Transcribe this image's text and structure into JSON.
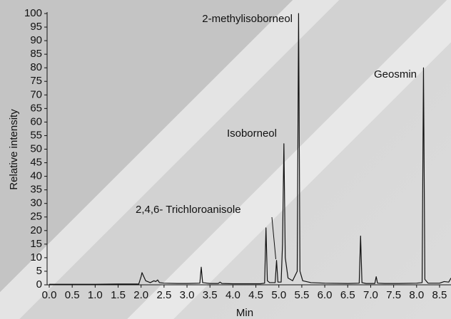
{
  "chart_data": {
    "type": "line",
    "x": [
      0.0,
      0.5,
      1.0,
      1.5,
      1.95,
      2.0,
      2.02,
      2.06,
      2.1,
      2.2,
      2.28,
      2.32,
      2.36,
      2.4,
      2.5,
      2.8,
      3.0,
      3.28,
      3.31,
      3.34,
      3.5,
      3.68,
      3.72,
      3.76,
      4.0,
      4.3,
      4.6,
      4.69,
      4.72,
      4.75,
      4.8,
      4.92,
      4.95,
      4.98,
      5.05,
      5.08,
      5.11,
      5.14,
      5.2,
      5.3,
      5.4,
      5.43,
      5.46,
      5.52,
      5.7,
      6.0,
      6.5,
      6.75,
      6.78,
      6.81,
      6.9,
      7.09,
      7.12,
      7.15,
      7.3,
      7.6,
      8.0,
      8.12,
      8.15,
      8.18,
      8.25,
      8.5,
      8.6,
      8.7,
      8.75
    ],
    "values": [
      0.2,
      0.2,
      0.2,
      0.3,
      0.3,
      3.0,
      4.5,
      3.0,
      1.5,
      0.8,
      1.5,
      1.2,
      1.8,
      0.8,
      0.6,
      0.5,
      0.5,
      0.6,
      6.5,
      0.8,
      0.5,
      0.5,
      1.0,
      0.5,
      0.4,
      0.4,
      0.4,
      0.6,
      21,
      1.5,
      0.8,
      0.8,
      9,
      1.0,
      1.0,
      15,
      52,
      10,
      2.5,
      1.5,
      5,
      100,
      5,
      1.5,
      0.8,
      0.6,
      0.5,
      0.6,
      18,
      0.8,
      0.5,
      0.5,
      3.0,
      0.6,
      0.5,
      0.5,
      0.6,
      0.8,
      80,
      2,
      0.6,
      0.6,
      1.2,
      1.0,
      2.5
    ],
    "color": "#111111",
    "xlabel": "Min",
    "ylabel": "Relative intensity",
    "xlim": [
      0,
      8.75
    ],
    "ylim": [
      0,
      100
    ],
    "xticks": [
      {
        "value": 0,
        "label": "0.0"
      },
      0.5,
      {
        "value": 1,
        "label": "1.0"
      },
      1.5,
      {
        "value": 2,
        "label": "2.0"
      },
      2.5,
      {
        "value": 3,
        "label": "3.0"
      },
      3.5,
      {
        "value": 4,
        "label": "4.0"
      },
      4.5,
      {
        "value": 5,
        "label": "5.0"
      },
      5.5,
      {
        "value": 6,
        "label": "6.0"
      },
      6.5,
      {
        "value": 7,
        "label": "7.0"
      },
      7.5,
      {
        "value": 8,
        "label": "8.0"
      },
      8.5
    ],
    "yticks": [
      0,
      5,
      10,
      15,
      20,
      25,
      30,
      35,
      40,
      45,
      50,
      55,
      60,
      65,
      70,
      75,
      80,
      85,
      90,
      95,
      100
    ],
    "annotations": [
      "2-methylisoborneol",
      "Geosmin",
      "Isoborneol",
      "2,4,6- Trichloroanisole"
    ]
  }
}
